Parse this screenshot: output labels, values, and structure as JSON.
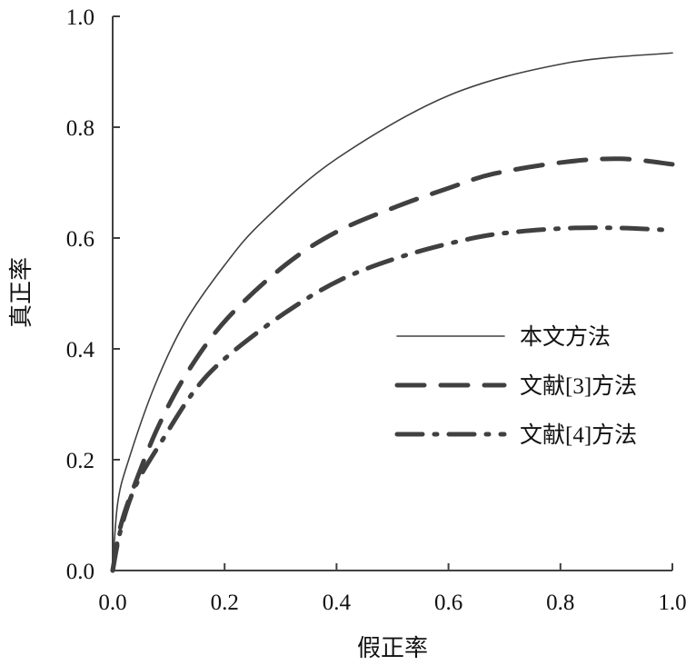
{
  "chart_data": {
    "type": "line",
    "title": "",
    "xlabel": "假正率",
    "ylabel": "真正率",
    "xlim": [
      0,
      1.0
    ],
    "ylim": [
      0,
      1.0
    ],
    "xticks": [
      "0.0",
      "0.2",
      "0.4",
      "0.6",
      "0.8",
      "1.0"
    ],
    "yticks": [
      "0.0",
      "0.2",
      "0.4",
      "0.6",
      "0.8",
      "1.0"
    ],
    "grid": false,
    "legend_position": "center-right",
    "line_color": "#404040",
    "series": [
      {
        "name": "本文方法",
        "style": "solid",
        "points": [
          [
            0,
            0
          ],
          [
            0.009,
            0.122
          ],
          [
            0.029,
            0.201
          ],
          [
            0.075,
            0.333
          ],
          [
            0.128,
            0.446
          ],
          [
            0.2,
            0.551
          ],
          [
            0.268,
            0.63
          ],
          [
            0.4,
            0.743
          ],
          [
            0.6,
            0.857
          ],
          [
            0.807,
            0.915
          ],
          [
            1.0,
            0.934
          ]
        ]
      },
      {
        "name": "文献[3]方法",
        "style": "dashed",
        "points": [
          [
            0,
            0
          ],
          [
            0.015,
            0.083
          ],
          [
            0.042,
            0.162
          ],
          [
            0.082,
            0.261
          ],
          [
            0.135,
            0.36
          ],
          [
            0.205,
            0.455
          ],
          [
            0.308,
            0.551
          ],
          [
            0.4,
            0.611
          ],
          [
            0.508,
            0.657
          ],
          [
            0.6,
            0.69
          ],
          [
            0.681,
            0.716
          ],
          [
            0.807,
            0.737
          ],
          [
            0.907,
            0.743
          ],
          [
            1.0,
            0.733
          ]
        ]
      },
      {
        "name": "文献[4]方法",
        "style": "dash-dot",
        "points": [
          [
            0,
            0
          ],
          [
            0.015,
            0.076
          ],
          [
            0.042,
            0.155
          ],
          [
            0.088,
            0.234
          ],
          [
            0.148,
            0.327
          ],
          [
            0.208,
            0.389
          ],
          [
            0.308,
            0.465
          ],
          [
            0.408,
            0.525
          ],
          [
            0.521,
            0.568
          ],
          [
            0.64,
            0.599
          ],
          [
            0.72,
            0.611
          ],
          [
            0.82,
            0.618
          ],
          [
            0.907,
            0.618
          ],
          [
            1.0,
            0.614
          ]
        ]
      }
    ]
  }
}
